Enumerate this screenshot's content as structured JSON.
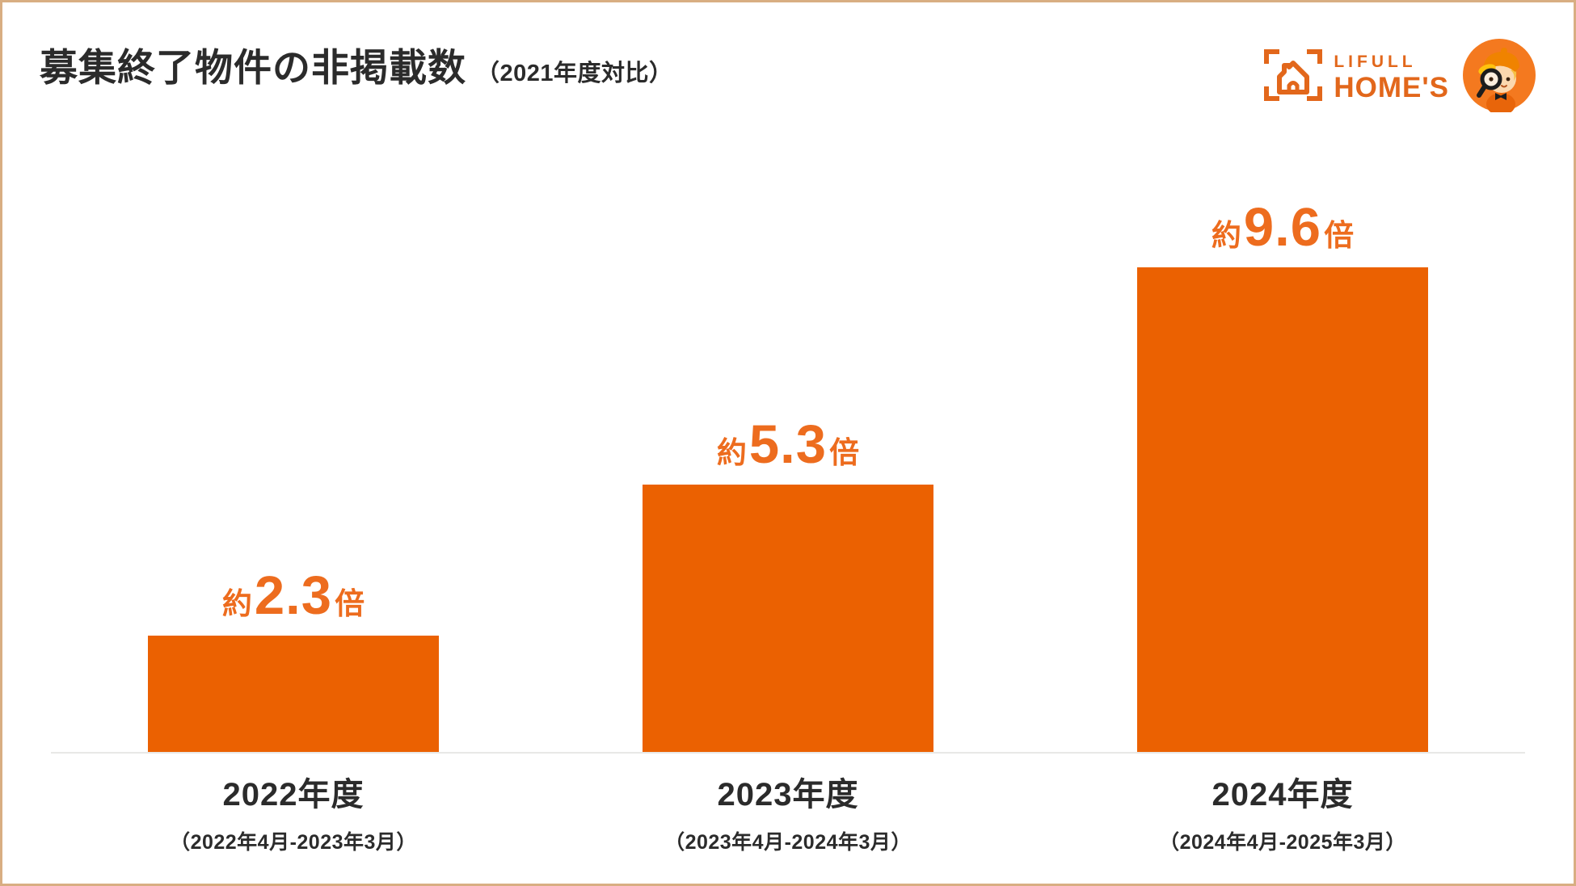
{
  "header": {
    "title": "募集終了物件の非掲載数",
    "title_suffix": "（2021年度対比）",
    "logo": {
      "brand_top": "LIFULL",
      "brand_bottom": "HOME'S"
    }
  },
  "chart_data": {
    "type": "bar",
    "title": "募集終了物件の非掲載数（2021年度対比）",
    "categories": [
      "2022年度",
      "2023年度",
      "2024年度"
    ],
    "category_subtitles": [
      "（2022年4月-2023年3月）",
      "（2023年4月-2024年3月）",
      "（2024年4月-2025年3月）"
    ],
    "values": [
      2.3,
      5.3,
      9.6
    ],
    "value_label_parts": [
      {
        "approx": "約",
        "num": "2.3",
        "unit": "倍"
      },
      {
        "approx": "約",
        "num": "5.3",
        "unit": "倍"
      },
      {
        "approx": "約",
        "num": "9.6",
        "unit": "倍"
      }
    ],
    "xlabel": "",
    "ylabel": "",
    "ylim": [
      0,
      10
    ],
    "grid": false,
    "legend": "none",
    "bar_color": "#eb6101",
    "value_label_color": "#ed6c1e",
    "baseline_color": "#e8e8e6"
  },
  "colors": {
    "brand_orange": "#e2671b",
    "bar_orange": "#eb6101",
    "text_dark": "#2b2b2b",
    "page_border_tan": "#d8ae82",
    "mascot_badge_orange": "#f4791f",
    "mascot_cap_yellow": "#ffc20e"
  }
}
